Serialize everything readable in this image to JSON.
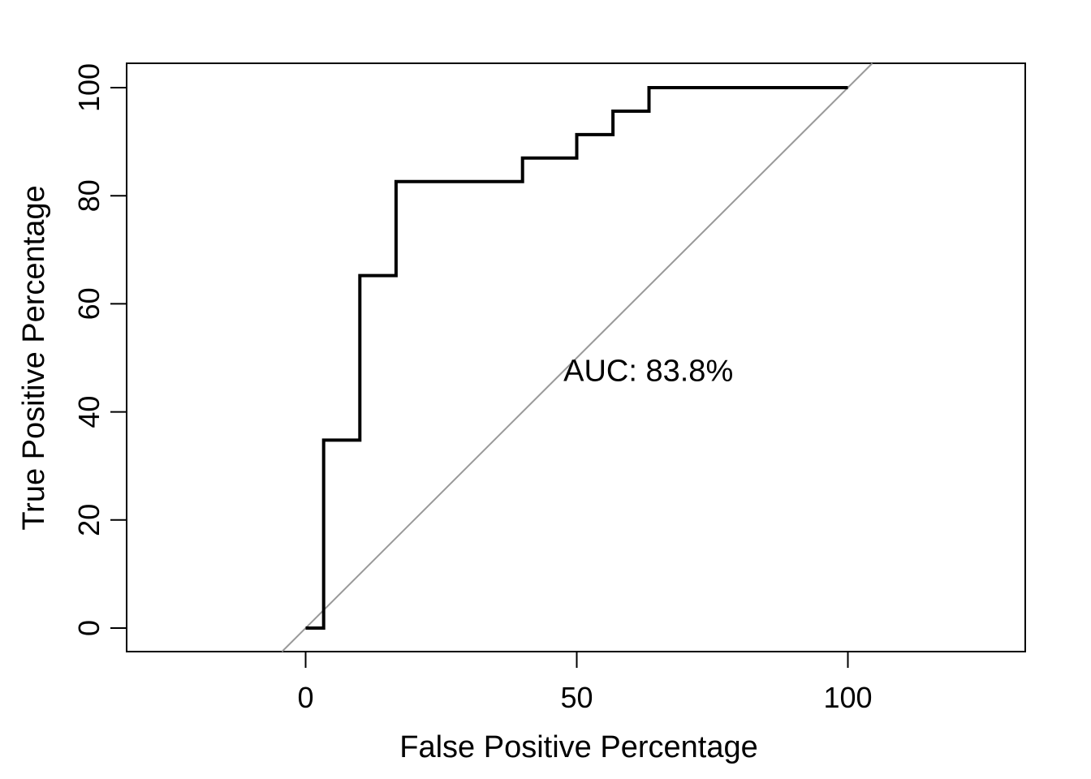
{
  "chart_data": {
    "type": "line",
    "subtype": "roc_step_curve",
    "title": "",
    "xlabel": "False Positive Percentage",
    "ylabel": "True Positive Percentage",
    "x_ticks": [
      0,
      50,
      100
    ],
    "y_ticks": [
      0,
      20,
      40,
      60,
      80,
      100
    ],
    "axis_range_x": [
      -32.9,
      132.8
    ],
    "axis_range_y": [
      -4.35,
      104.5
    ],
    "grid": false,
    "legend": false,
    "roc_points": [
      [
        0,
        0
      ],
      [
        3.33,
        0
      ],
      [
        3.33,
        34.78
      ],
      [
        10,
        34.78
      ],
      [
        10,
        65.22
      ],
      [
        16.67,
        65.22
      ],
      [
        16.67,
        82.61
      ],
      [
        40,
        82.61
      ],
      [
        40,
        86.96
      ],
      [
        50,
        86.96
      ],
      [
        50,
        91.3
      ],
      [
        56.67,
        91.3
      ],
      [
        56.67,
        95.65
      ],
      [
        63.33,
        95.65
      ],
      [
        63.33,
        100
      ],
      [
        100,
        100
      ]
    ],
    "diagonal": {
      "from": [
        -4.35,
        -4.35
      ],
      "to": [
        104.5,
        104.5
      ],
      "color": "#999999"
    },
    "annotation": {
      "text": "AUC: 83.8%",
      "x": 63.2,
      "y": 47.7
    },
    "auc_percent": 83.8,
    "curve_color": "#000000",
    "text_color": "#000000",
    "background_color": "#ffffff"
  }
}
